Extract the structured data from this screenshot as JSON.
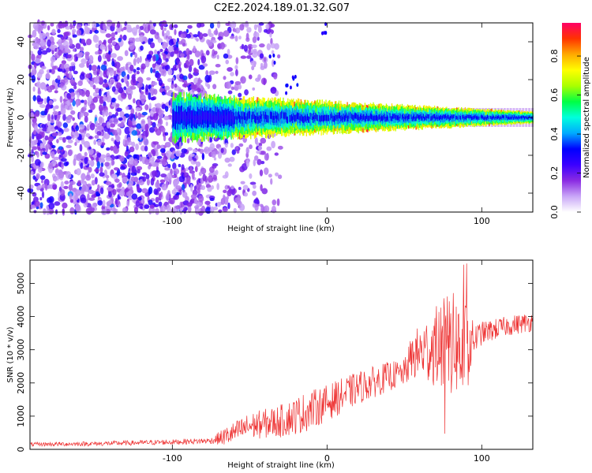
{
  "title": "C2E2.2024.189.01.32.G07",
  "chart_data": [
    {
      "type": "heatmap",
      "xlabel": "Height of straight line (km)",
      "ylabel": "Frequency (Hz)",
      "xlim": [
        -192,
        133
      ],
      "ylim": [
        -50,
        50
      ],
      "xticks": [
        -100,
        0,
        100
      ],
      "yticks": [
        -40,
        -20,
        0,
        20,
        40
      ],
      "colorbar": {
        "label": "Normalized spectral amplitude",
        "range": [
          0.0,
          0.97
        ],
        "ticks": [
          0.0,
          0.2,
          0.4,
          0.6,
          0.8
        ],
        "tick_labels": [
          "0.0",
          "0.2",
          "0.4",
          "0.6",
          "0.8"
        ],
        "colors": [
          "#ffffff",
          "#c9a6f7",
          "#8a2be2",
          "#3a00ff",
          "#0000ff",
          "#00aaff",
          "#00ffdd",
          "#00ff44",
          "#aaff00",
          "#ffff00",
          "#ffaa00",
          "#ff3300",
          "#ff0066"
        ]
      },
      "description_points": {
        "noise_region_x": [
          -192,
          -60
        ],
        "signal_start_x": -100,
        "signal_center_freq": 0,
        "signal_halfwidth_start": 12,
        "signal_halfwidth_end": 3,
        "sparse_features": [
          {
            "x": -20,
            "y": 20
          },
          {
            "x": -25,
            "y": 15
          },
          {
            "x": -35,
            "y": 30
          },
          {
            "x": -2,
            "y": 47
          }
        ]
      }
    },
    {
      "type": "line",
      "xlabel": "Height of straight line (km)",
      "ylabel": "SNR (10 * v/v)",
      "xlim": [
        -192,
        133
      ],
      "ylim": [
        0,
        5700
      ],
      "xticks": [
        -100,
        0,
        100
      ],
      "yticks": [
        0,
        1000,
        2000,
        3000,
        4000,
        5000
      ],
      "color": "#ee3333",
      "envelope": {
        "x": [
          -192,
          -150,
          -100,
          -75,
          -65,
          -50,
          -30,
          -15,
          0,
          20,
          40,
          50,
          55,
          70,
          80,
          90,
          95,
          100,
          115,
          133
        ],
        "mean": [
          150,
          170,
          220,
          260,
          400,
          700,
          850,
          1100,
          1400,
          1850,
          2200,
          2300,
          2800,
          3100,
          3200,
          3000,
          3300,
          3500,
          3700,
          3850
        ],
        "spread": [
          60,
          70,
          80,
          90,
          300,
          400,
          500,
          600,
          550,
          500,
          450,
          400,
          700,
          1200,
          1600,
          1400,
          500,
          350,
          300,
          300
        ]
      }
    }
  ]
}
